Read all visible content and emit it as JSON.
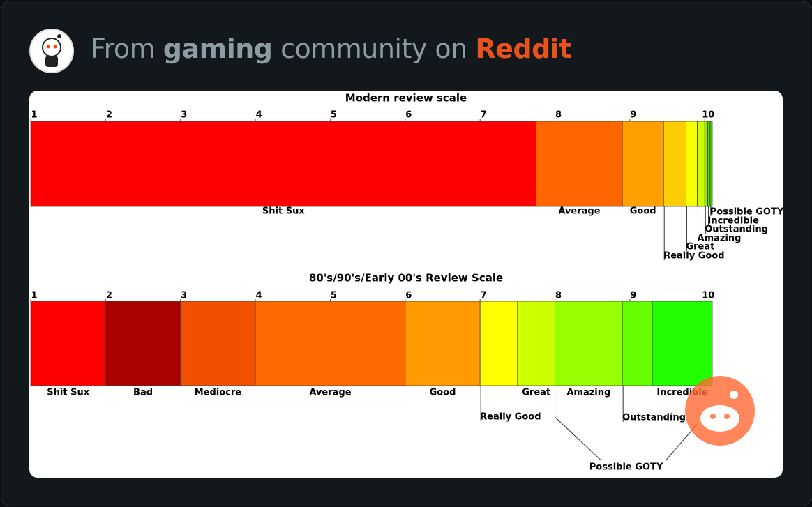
{
  "header": {
    "prefix": "From",
    "community": "gaming",
    "middle": "community on",
    "site": "Reddit"
  },
  "chart_data": [
    {
      "type": "scale",
      "title": "Modern review scale",
      "xlim": [
        1,
        10.1
      ],
      "xticks": [
        1,
        2,
        3,
        4,
        5,
        6,
        7,
        8,
        9,
        10
      ],
      "segments": [
        {
          "name": "Shit Sux",
          "start": 1,
          "end": 7.75,
          "color": "#ff0000"
        },
        {
          "name": "Average",
          "start": 7.75,
          "end": 8.9,
          "color": "#ff6600"
        },
        {
          "name": "Good",
          "start": 8.9,
          "end": 9.45,
          "color": "#ff9f00"
        },
        {
          "name": "Really Good",
          "start": 9.45,
          "end": 9.75,
          "color": "#ffcc00"
        },
        {
          "name": "Great",
          "start": 9.75,
          "end": 9.9,
          "color": "#f8ff00"
        },
        {
          "name": "Amazing",
          "start": 9.9,
          "end": 10,
          "color": "#ccff00"
        },
        {
          "name": "Outstanding",
          "start": 10,
          "end": 10.04,
          "color": "#99ee00"
        },
        {
          "name": "Incredible",
          "start": 10.04,
          "end": 10.07,
          "color": "#66dd00"
        },
        {
          "name": "Possible GOTY",
          "start": 10.07,
          "end": 10.1,
          "color": "#33cc00"
        }
      ]
    },
    {
      "type": "scale",
      "title": "80's/90's/Early 00's Review Scale",
      "xlim": [
        1,
        10.1
      ],
      "xticks": [
        1,
        2,
        3,
        4,
        5,
        6,
        7,
        8,
        9,
        10
      ],
      "segments": [
        {
          "name": "Shit Sux",
          "start": 1,
          "end": 2,
          "color": "#ff0000"
        },
        {
          "name": "Bad",
          "start": 2,
          "end": 3,
          "color": "#aa0000"
        },
        {
          "name": "Mediocre",
          "start": 3,
          "end": 4,
          "color": "#f05000"
        },
        {
          "name": "Average",
          "start": 4,
          "end": 6,
          "color": "#ff6a00"
        },
        {
          "name": "Good",
          "start": 6,
          "end": 7,
          "color": "#ff9a00"
        },
        {
          "name": "Really Good",
          "start": 7,
          "end": 7.5,
          "color": "#ffff00"
        },
        {
          "name": "Great",
          "start": 7.5,
          "end": 8,
          "color": "#ccff00"
        },
        {
          "name": "Amazing",
          "start": 8,
          "end": 8.9,
          "color": "#99ff00"
        },
        {
          "name": "Outstanding",
          "start": 8.9,
          "end": 9.3,
          "color": "#66ff00"
        },
        {
          "name": "Incredible",
          "start": 9.3,
          "end": 10.1,
          "color": "#22ff00"
        }
      ],
      "annotations": [
        {
          "text": "Possible GOTY",
          "from": 8,
          "to": 9.9
        }
      ]
    }
  ]
}
